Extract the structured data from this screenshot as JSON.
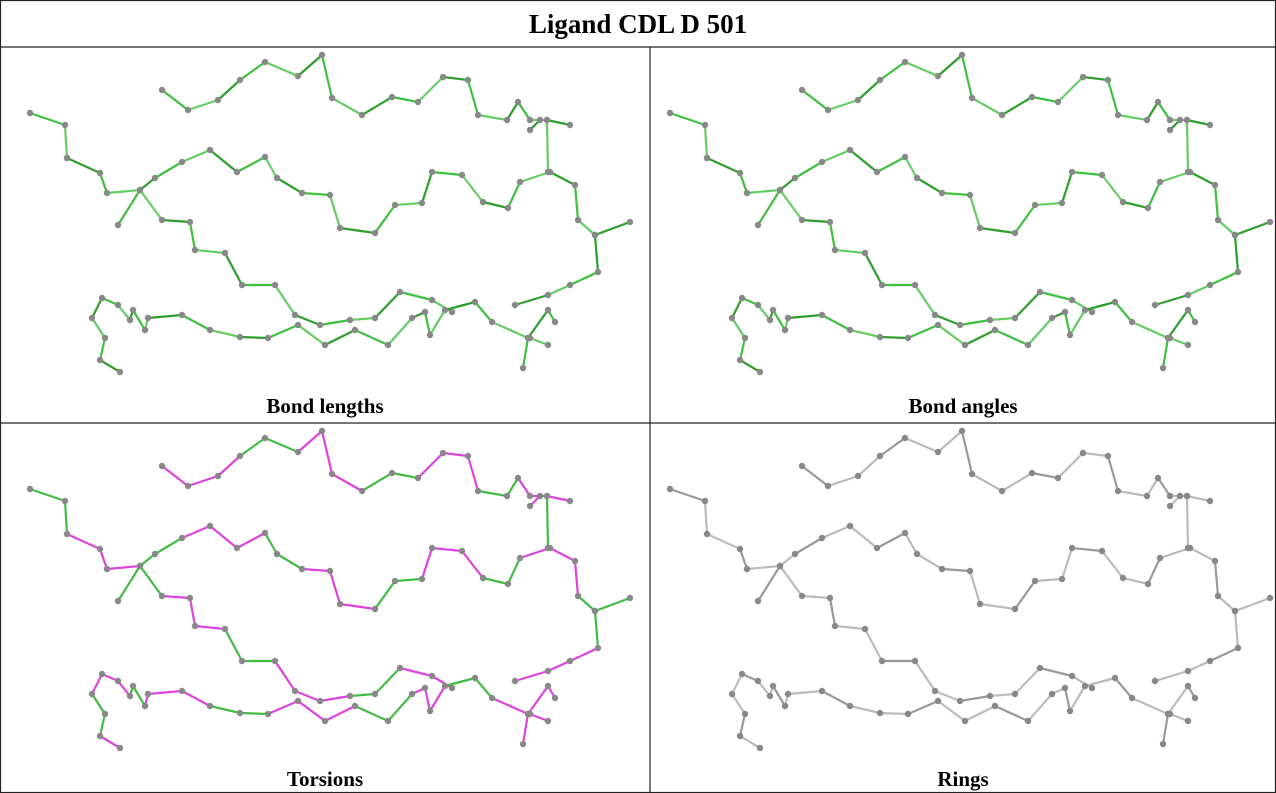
{
  "header": {
    "title": "Ligand CDL D 501"
  },
  "panels": [
    {
      "label": "Bond lengths"
    },
    {
      "label": "Bond angles"
    },
    {
      "label": "Torsions"
    },
    {
      "label": "Rings"
    }
  ]
}
